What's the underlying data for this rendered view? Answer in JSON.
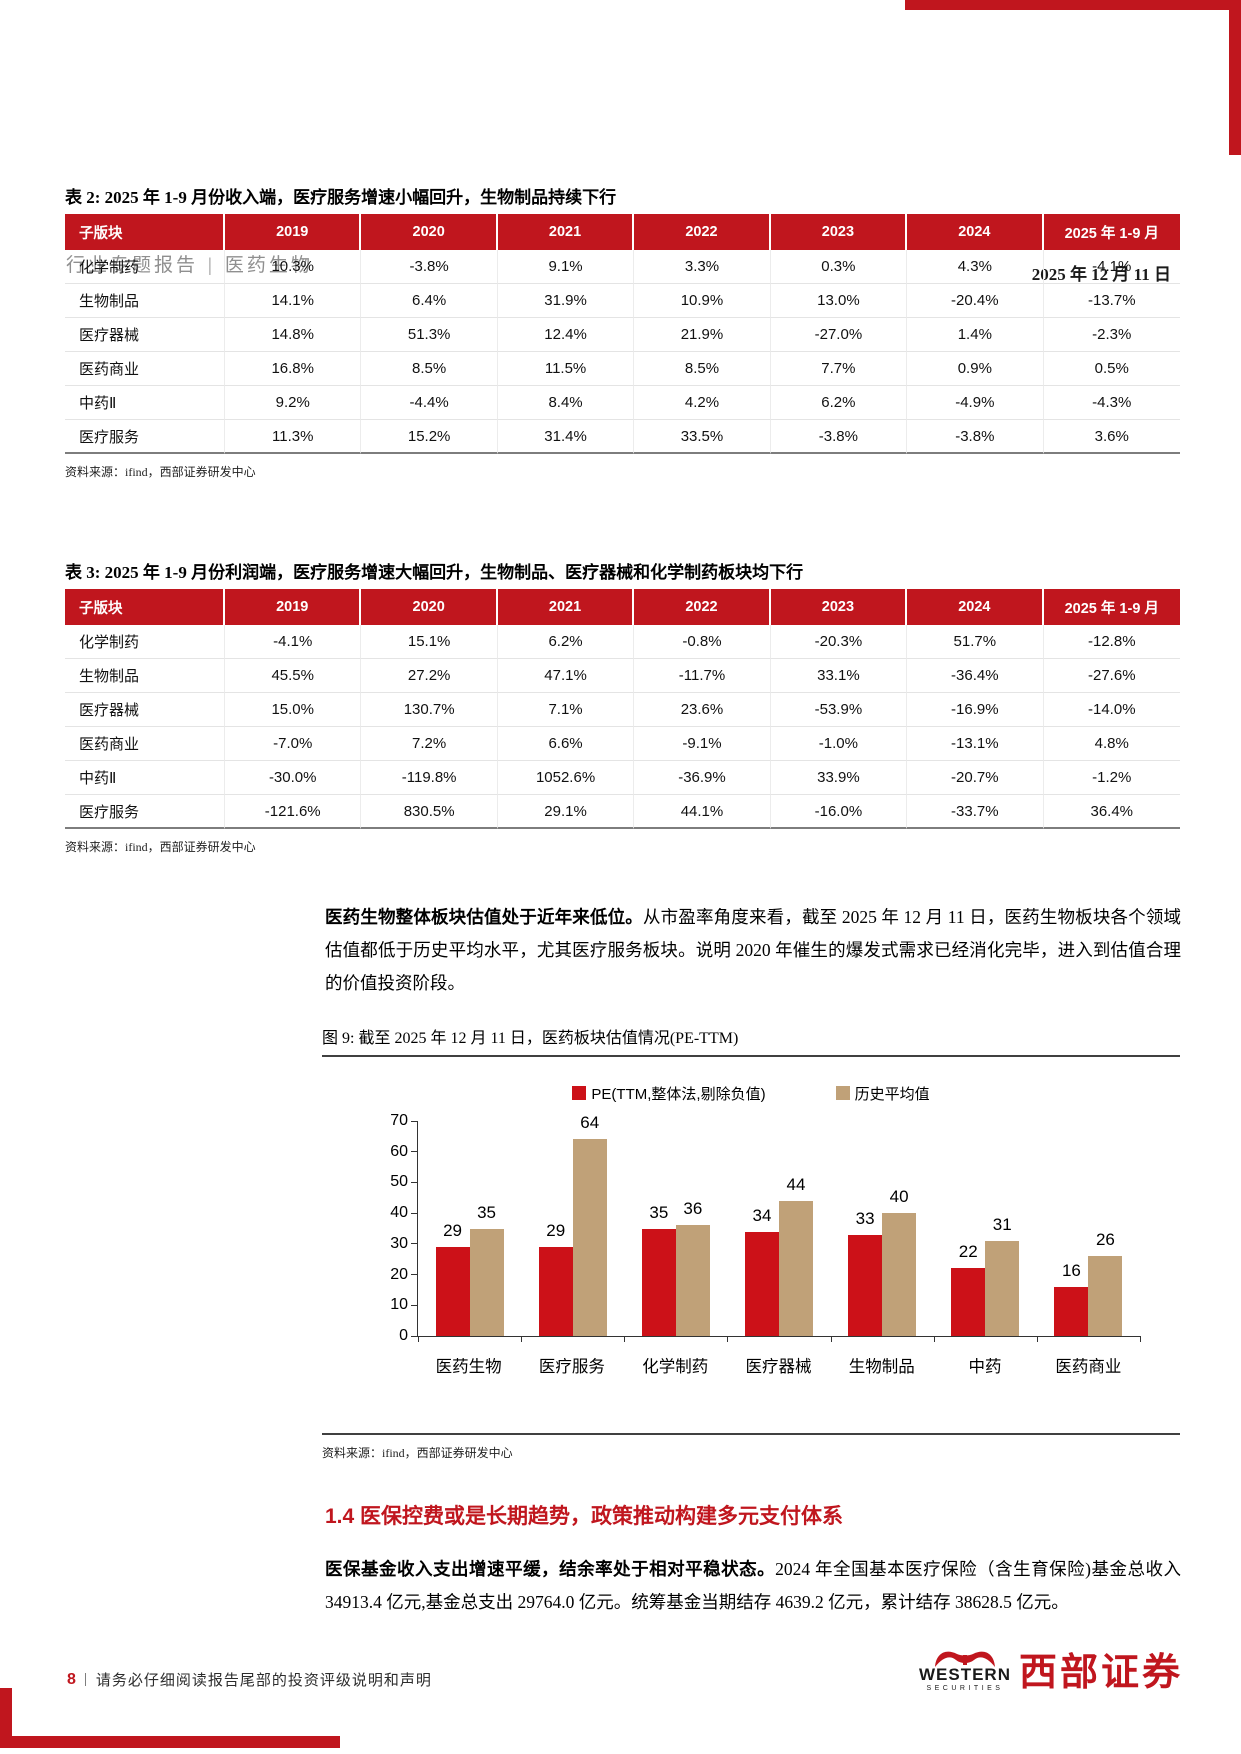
{
  "colors": {
    "brand_red": "#C0161E",
    "bar_red": "#CC1118",
    "bar_tan": "#C0A178"
  },
  "header": {
    "report_type": "行业专题报告",
    "divider": "|",
    "sector": "医药生物",
    "brand": "西部证券",
    "date": "2025 年 12 月 11 日"
  },
  "table2": {
    "title": "表 2: 2025 年 1-9 月份收入端，医疗服务增速小幅回升，生物制品持续下行",
    "columns": [
      "子版块",
      "2019",
      "2020",
      "2021",
      "2022",
      "2023",
      "2024",
      "2025 年 1-9 月"
    ],
    "rows": [
      {
        "name": "化学制药",
        "values": [
          "10.3%",
          "-3.8%",
          "9.1%",
          "3.3%",
          "0.3%",
          "4.3%",
          "-4.1%"
        ]
      },
      {
        "name": "生物制品",
        "values": [
          "14.1%",
          "6.4%",
          "31.9%",
          "10.9%",
          "13.0%",
          "-20.4%",
          "-13.7%"
        ]
      },
      {
        "name": "医疗器械",
        "values": [
          "14.8%",
          "51.3%",
          "12.4%",
          "21.9%",
          "-27.0%",
          "1.4%",
          "-2.3%"
        ]
      },
      {
        "name": "医药商业",
        "values": [
          "16.8%",
          "8.5%",
          "11.5%",
          "8.5%",
          "7.7%",
          "0.9%",
          "0.5%"
        ]
      },
      {
        "name": "中药Ⅱ",
        "values": [
          "9.2%",
          "-4.4%",
          "8.4%",
          "4.2%",
          "6.2%",
          "-4.9%",
          "-4.3%"
        ]
      },
      {
        "name": "医疗服务",
        "values": [
          "11.3%",
          "15.2%",
          "31.4%",
          "33.5%",
          "-3.8%",
          "-3.8%",
          "3.6%"
        ]
      }
    ],
    "source": "资料来源：ifind，西部证券研发中心"
  },
  "table3": {
    "title": "表 3: 2025 年 1-9 月份利润端，医疗服务增速大幅回升，生物制品、医疗器械和化学制药板块均下行",
    "columns": [
      "子版块",
      "2019",
      "2020",
      "2021",
      "2022",
      "2023",
      "2024",
      "2025 年 1-9 月"
    ],
    "rows": [
      {
        "name": "化学制药",
        "values": [
          "-4.1%",
          "15.1%",
          "6.2%",
          "-0.8%",
          "-20.3%",
          "51.7%",
          "-12.8%"
        ]
      },
      {
        "name": "生物制品",
        "values": [
          "45.5%",
          "27.2%",
          "47.1%",
          "-11.7%",
          "33.1%",
          "-36.4%",
          "-27.6%"
        ]
      },
      {
        "name": "医疗器械",
        "values": [
          "15.0%",
          "130.7%",
          "7.1%",
          "23.6%",
          "-53.9%",
          "-16.9%",
          "-14.0%"
        ]
      },
      {
        "name": "医药商业",
        "values": [
          "-7.0%",
          "7.2%",
          "6.6%",
          "-9.1%",
          "-1.0%",
          "-13.1%",
          "4.8%"
        ]
      },
      {
        "name": "中药Ⅱ",
        "values": [
          "-30.0%",
          "-119.8%",
          "1052.6%",
          "-36.9%",
          "33.9%",
          "-20.7%",
          "-1.2%"
        ]
      },
      {
        "name": "医疗服务",
        "values": [
          "-121.6%",
          "830.5%",
          "29.1%",
          "44.1%",
          "-16.0%",
          "-33.7%",
          "36.4%"
        ]
      }
    ],
    "source": "资料来源：ifind，西部证券研发中心"
  },
  "paragraph1": {
    "lead": "医药生物整体板块估值处于近年来低位。",
    "body": "从市盈率角度来看，截至 2025 年 12 月 11 日，医药生物板块各个领域估值都低于历史平均水平，尤其医疗服务板块。说明 2020 年催生的爆发式需求已经消化完毕，进入到估值合理的价值投资阶段。"
  },
  "figure9": {
    "title": "图 9: 截至 2025 年 12 月 11 日，医药板块估值情况(PE-TTM)",
    "source": "资料来源：ifind，西部证券研发中心"
  },
  "chart_data": {
    "type": "bar",
    "title": "图 9: 截至 2025 年 12 月 11 日，医药板块估值情况(PE-TTM)",
    "categories": [
      "医药生物",
      "医疗服务",
      "化学制药",
      "医疗器械",
      "生物制品",
      "中药",
      "医药商业"
    ],
    "series": [
      {
        "name": "PE(TTM,整体法,剔除负值)",
        "color": "#CC1118",
        "values": [
          29,
          29,
          35,
          34,
          33,
          22,
          16
        ]
      },
      {
        "name": "历史平均值",
        "color": "#C0A178",
        "values": [
          35,
          64,
          36,
          44,
          40,
          31,
          26
        ]
      }
    ],
    "xlabel": "",
    "ylabel": "",
    "ylim": [
      0,
      70
    ],
    "yticks": [
      0,
      10,
      20,
      30,
      40,
      50,
      60,
      70
    ],
    "grid": false,
    "legend_position": "top"
  },
  "section14": {
    "heading": "1.4 医保控费或是长期趋势，政策推动构建多元支付体系"
  },
  "paragraph2": {
    "lead": "医保基金收入支出增速平缓，结余率处于相对平稳状态。",
    "body": "2024 年全国基本医疗保险（含生育保险)基金总收入 34913.4 亿元,基金总支出 29764.0 亿元。统筹基金当期结存 4639.2 亿元，累计结存 38628.5 亿元。"
  },
  "footer": {
    "page_number": "8",
    "divider": "|",
    "note": "请务必仔细阅读报告尾部的投资评级说明和声明"
  },
  "logo": {
    "name_en": "WESTERN",
    "sub_en": "SECURITIES",
    "name_cn": "西部证券"
  }
}
